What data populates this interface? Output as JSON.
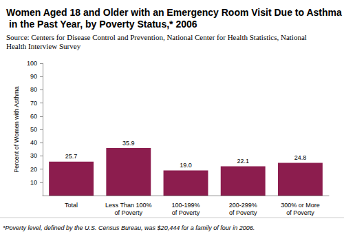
{
  "chart_data": {
    "type": "bar",
    "title": "Women Aged 18 and Older with an Emergency Room Visit Due to Asthma in the Past Year, by Poverty Status,* 2006",
    "source": "Source: Centers for Disease Control and Prevention, National Center for Health Statistics, National Health Interview Survey",
    "y_label": "Percent of Women with Asthma",
    "categories": [
      "Total",
      "Less Than 100%\nof Poverty",
      "100-199%\nof Poverty",
      "200-299%\nof Poverty",
      "300% or More\nof Poverty"
    ],
    "values": [
      25.7,
      35.9,
      19.0,
      22.1,
      24.8
    ],
    "value_labels": [
      "25.7",
      "35.9",
      "19.0",
      "22.1",
      "24.8"
    ],
    "color": "#8c1d4e",
    "ylim": [
      0,
      100
    ],
    "yticks": [
      10,
      20,
      30,
      40,
      50,
      60,
      70,
      80,
      90,
      100
    ],
    "grid": false,
    "data_labels": true,
    "footnote": "*Poverty level, defined by the U.S. Census Bureau, was $20,444 for a family of four in 2006."
  }
}
